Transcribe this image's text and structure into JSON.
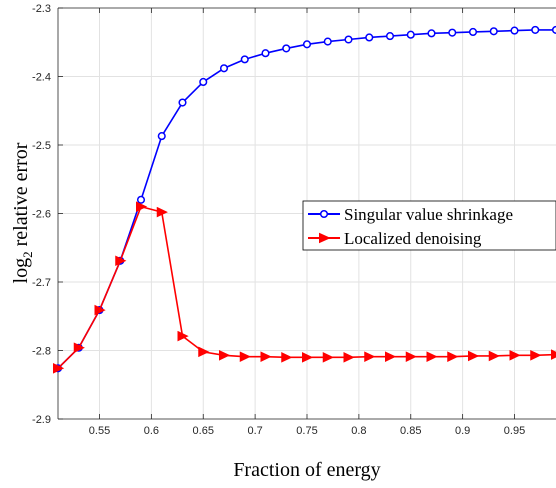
{
  "chart_data": {
    "type": "line",
    "xlabel": "Fraction of energy",
    "ylabel_main": "log",
    "ylabel_sub": "2",
    "ylabel_rest": " relative error",
    "xlim": [
      0.51,
      0.99
    ],
    "ylim": [
      -2.9,
      -2.3
    ],
    "xticks": [
      0.55,
      0.6,
      0.65,
      0.7,
      0.75,
      0.8,
      0.85,
      0.9,
      0.95
    ],
    "xtick_labels": [
      "0.55",
      "0.6",
      "0.65",
      "0.7",
      "0.75",
      "0.8",
      "0.85",
      "0.9",
      "0.95"
    ],
    "yticks": [
      -2.3,
      -2.4,
      -2.5,
      -2.6,
      -2.7,
      -2.8,
      -2.9
    ],
    "ytick_labels": [
      "-2.3",
      "-2.4",
      "-2.5",
      "-2.6",
      "-2.7",
      "-2.8",
      "-2.9"
    ],
    "grid": true,
    "legend_position": "center-right",
    "x": [
      0.51,
      0.53,
      0.55,
      0.57,
      0.59,
      0.61,
      0.63,
      0.65,
      0.67,
      0.69,
      0.71,
      0.73,
      0.75,
      0.77,
      0.79,
      0.81,
      0.83,
      0.85,
      0.87,
      0.89,
      0.91,
      0.93,
      0.95,
      0.97,
      0.99
    ],
    "series": [
      {
        "name": "Singular value shrinkage",
        "color": "#0000ff",
        "marker": "circle",
        "values": [
          -2.826,
          -2.796,
          -2.741,
          -2.669,
          -2.58,
          -2.487,
          -2.438,
          -2.408,
          -2.388,
          -2.375,
          -2.366,
          -2.359,
          -2.353,
          -2.349,
          -2.346,
          -2.343,
          -2.341,
          -2.339,
          -2.337,
          -2.336,
          -2.335,
          -2.334,
          -2.333,
          -2.332,
          -2.332
        ]
      },
      {
        "name": "Localized denoising",
        "color": "#ff0000",
        "marker": "triangle-right",
        "values": [
          -2.826,
          -2.796,
          -2.741,
          -2.669,
          -2.59,
          -2.598,
          -2.779,
          -2.802,
          -2.807,
          -2.809,
          -2.809,
          -2.81,
          -2.81,
          -2.81,
          -2.81,
          -2.809,
          -2.809,
          -2.809,
          -2.809,
          -2.809,
          -2.808,
          -2.808,
          -2.807,
          -2.807,
          -2.806
        ]
      }
    ]
  }
}
